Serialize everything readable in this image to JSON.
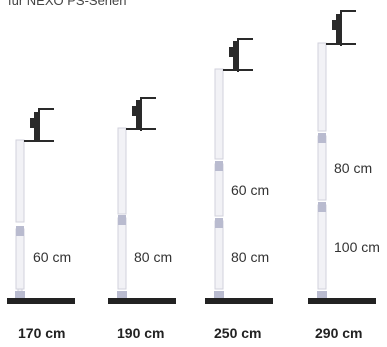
{
  "header": {
    "text": "für NEXO PS-Serien"
  },
  "stands": [
    {
      "total_height": "170 cm",
      "segments": [
        "60 cm"
      ]
    },
    {
      "total_height": "190 cm",
      "segments": [
        "80 cm"
      ]
    },
    {
      "total_height": "250 cm",
      "segments": [
        "80 cm",
        "60 cm"
      ]
    },
    {
      "total_height": "290 cm",
      "segments": [
        "100 cm",
        "80 cm"
      ]
    }
  ],
  "colors": {
    "pole": "#f2f2f6",
    "pole_edge": "#d2d2dc",
    "collar": "#b9bbcf",
    "base": "#222222",
    "bracket": "#2a2a2a"
  }
}
